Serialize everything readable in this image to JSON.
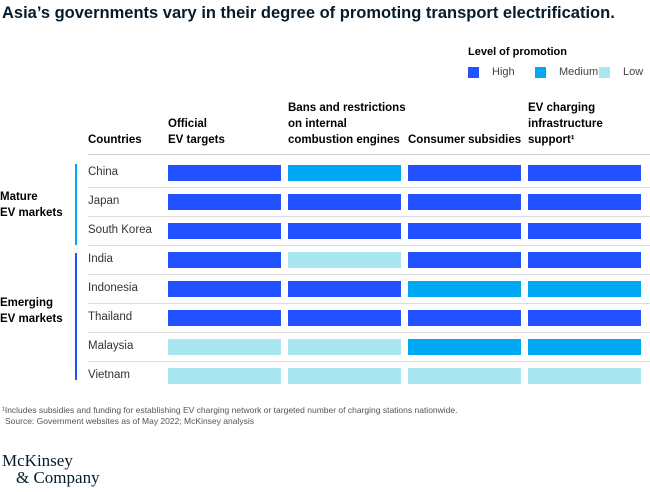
{
  "title": "Asia’s governments vary in their degree of promoting transport electrification.",
  "colors": {
    "High": "#2251ff",
    "Medium": "#00a9f4",
    "Low": "#aae6f0"
  },
  "legend": {
    "title": "Level of promotion",
    "items": [
      "High",
      "Medium",
      "Low"
    ]
  },
  "chart_data": {
    "type": "table",
    "columns": [
      "Countries",
      "Official EV targets",
      "Bans and restrictions on internal combustion engines",
      "Consumer subsidies",
      "EV charging infrastructure support¹"
    ],
    "groups": [
      {
        "name": "Mature EV markets",
        "rows": [
          {
            "country": "China",
            "levels": [
              "High",
              "Medium",
              "High",
              "High"
            ]
          },
          {
            "country": "Japan",
            "levels": [
              "High",
              "High",
              "High",
              "High"
            ]
          },
          {
            "country": "South Korea",
            "levels": [
              "High",
              "High",
              "High",
              "High"
            ]
          }
        ]
      },
      {
        "name": "Emerging EV markets",
        "rows": [
          {
            "country": "India",
            "levels": [
              "High",
              "Low",
              "High",
              "High"
            ]
          },
          {
            "country": "Indonesia",
            "levels": [
              "High",
              "High",
              "Medium",
              "Medium"
            ]
          },
          {
            "country": "Thailand",
            "levels": [
              "High",
              "High",
              "High",
              "High"
            ]
          },
          {
            "country": "Malaysia",
            "levels": [
              "Low",
              "Low",
              "Medium",
              "Medium"
            ]
          },
          {
            "country": "Vietnam",
            "levels": [
              "Low",
              "Low",
              "Low",
              "Low"
            ]
          }
        ]
      }
    ]
  },
  "headers": {
    "countries": "Countries",
    "c1": [
      "Official",
      "EV targets"
    ],
    "c2": [
      "Bans and restrictions",
      "on internal",
      "combustion engines"
    ],
    "c3": [
      "Consumer subsidies"
    ],
    "c4": [
      "EV charging",
      "infrastructure support¹"
    ]
  },
  "group_labels": {
    "mature": [
      "Mature",
      "EV markets"
    ],
    "emerging": [
      "Emerging",
      "EV markets"
    ]
  },
  "footnote": "¹Includes subsidies and funding for establishing EV charging network or targeted number of charging stations nationwide.",
  "source": "Source: Government websites as of May 2022; McKinsey analysis",
  "logo": [
    "McKinsey",
    "& Company"
  ]
}
